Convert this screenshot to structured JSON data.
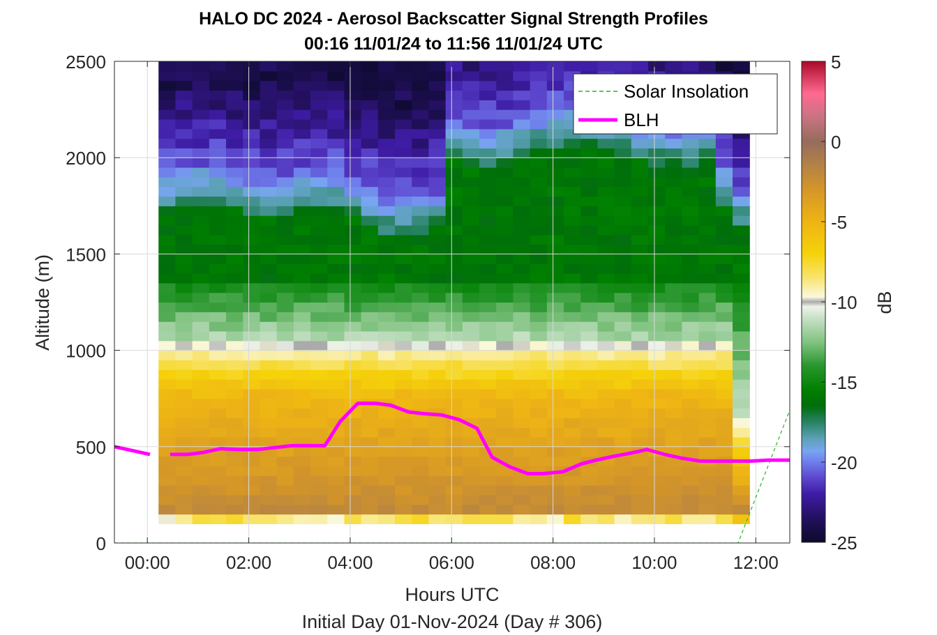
{
  "chart_data": {
    "type": "heatmap",
    "title": "HALO DC 2024 - Aerosol Backscatter Signal Strength Profiles",
    "subtitle": "00:16 11/01/24 to 11:56 11/01/24  UTC",
    "xlabel": "Hours UTC",
    "ylabel": "Altitude (m)",
    "footer": "Initial Day 01-Nov-2024 (Day # 306)",
    "xlim": [
      -0.65,
      12.67
    ],
    "ylim": [
      0,
      2500
    ],
    "x_ticks": [
      0,
      2,
      4,
      6,
      8,
      10,
      12
    ],
    "x_tick_labels": [
      "00:00",
      "02:00",
      "04:00",
      "06:00",
      "08:00",
      "10:00",
      "12:00"
    ],
    "y_ticks": [
      0,
      500,
      1000,
      1500,
      2000,
      2500
    ],
    "y_tick_labels": [
      "0",
      "500",
      "1000",
      "1500",
      "2000",
      "2500"
    ],
    "grid": true,
    "legend_position": "top-right",
    "colorbar": {
      "label": "dB",
      "range": [
        -25,
        5
      ],
      "ticks": [
        5,
        0,
        -5,
        -10,
        -15,
        -20,
        -25
      ],
      "tick_labels": [
        "5",
        "0",
        "-5",
        "-10",
        "-15",
        "-20",
        "-25"
      ]
    },
    "heatmap": {
      "x_start": 0.22,
      "x_end": 11.64,
      "x_step": 0.333,
      "y_start": 100,
      "y_end": 2500,
      "y_step": 50
    },
    "series": [
      {
        "name": "Solar Insolation",
        "style": "dashed",
        "color": "#22b922",
        "x": [
          -0.65,
          11.65,
          12.67
        ],
        "y": [
          0,
          0,
          690
        ]
      },
      {
        "name": "BLH",
        "style": "solid",
        "color": "#ff00ff",
        "segments": [
          {
            "x": [
              -0.65,
              -0.3,
              0.05
            ],
            "y": [
              500,
              480,
              460
            ]
          },
          {
            "x": [
              0.45,
              0.8,
              1.1,
              1.45,
              1.8,
              2.15,
              2.5,
              2.85,
              3.2,
              3.5,
              3.8,
              4.15,
              4.5,
              4.8,
              5.15,
              5.5,
              5.8,
              6.15,
              6.5,
              6.8,
              7.15,
              7.5,
              7.8,
              8.2,
              8.55,
              8.85,
              9.2,
              9.5,
              9.85,
              10.2,
              10.55,
              10.9,
              11.2,
              11.55,
              11.9,
              12.25,
              12.67
            ],
            "y": [
              460,
              460,
              470,
              490,
              485,
              485,
              495,
              505,
              505,
              505,
              630,
              725,
              725,
              715,
              680,
              670,
              665,
              640,
              595,
              445,
              395,
              360,
              360,
              370,
              410,
              430,
              450,
              465,
              485,
              460,
              440,
              425,
              425,
              425,
              425,
              430,
              430
            ]
          }
        ]
      }
    ],
    "legend": [
      {
        "label": "Solar Insolation"
      },
      {
        "label": "BLH"
      }
    ]
  }
}
